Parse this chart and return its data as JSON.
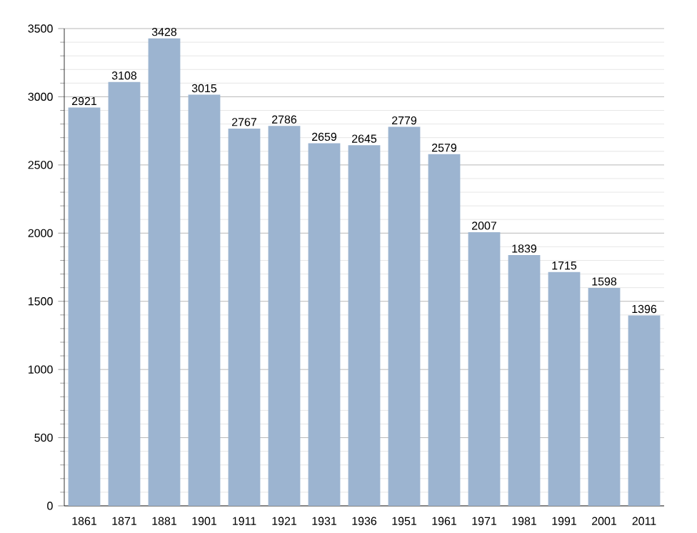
{
  "chart_data": {
    "type": "bar",
    "categories": [
      "1861",
      "1871",
      "1881",
      "1901",
      "1911",
      "1921",
      "1931",
      "1936",
      "1951",
      "1961",
      "1971",
      "1981",
      "1991",
      "2001",
      "2011"
    ],
    "values": [
      2921,
      3108,
      3428,
      3015,
      2767,
      2786,
      2659,
      2645,
      2779,
      2579,
      2007,
      1839,
      1715,
      1598,
      1396
    ],
    "color": "#9cb4d0",
    "ylim": [
      0,
      3500
    ],
    "yticks": [
      0,
      500,
      1000,
      1500,
      2000,
      2500,
      3000,
      3500
    ],
    "grid": "y",
    "data_labels": true
  }
}
